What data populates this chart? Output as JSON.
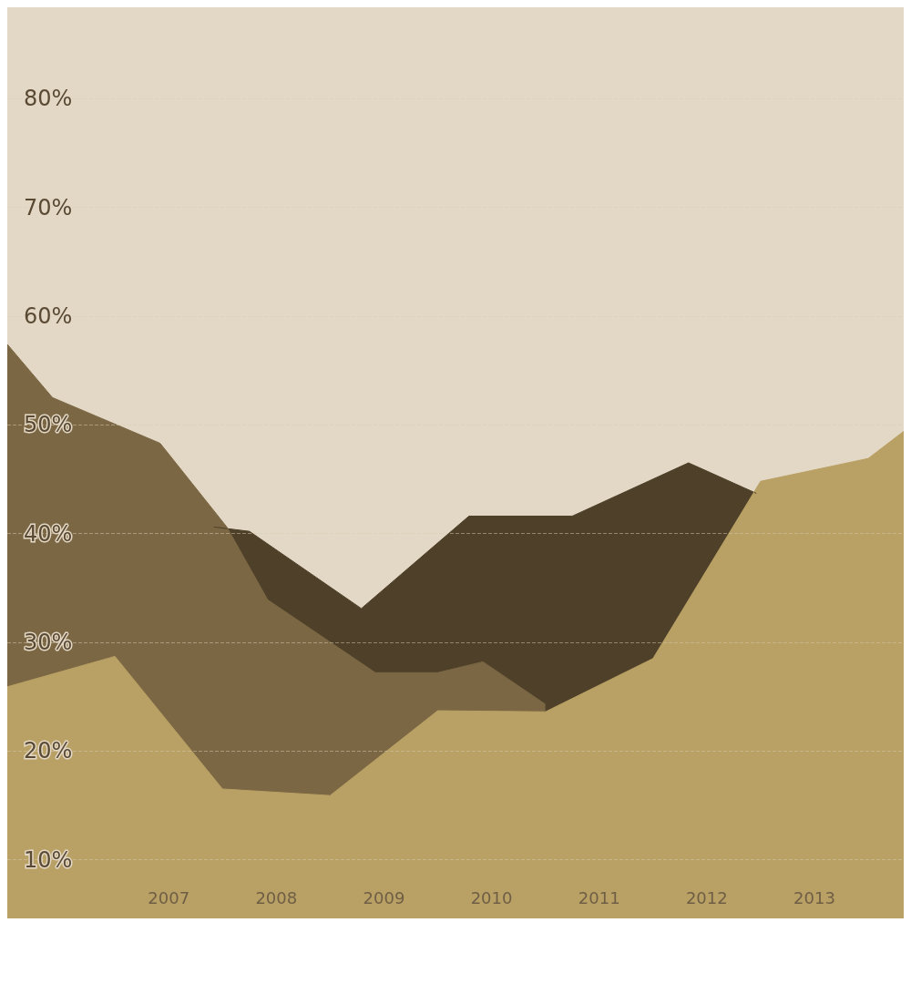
{
  "chart_data": {
    "type": "area",
    "xlim": [
      2005.5,
      2013.83
    ],
    "xticks": [
      2007,
      2008,
      2009,
      2010,
      2011,
      2012,
      2013
    ],
    "ylim": [
      4.6,
      88.4
    ],
    "yticks": [
      {
        "value": 10,
        "label": "10%"
      },
      {
        "value": 20,
        "label": "20%"
      },
      {
        "value": 30,
        "label": "30%"
      },
      {
        "value": 40,
        "label": "40%"
      },
      {
        "value": 50,
        "label": "50%"
      },
      {
        "value": 60,
        "label": "60%"
      },
      {
        "value": 70,
        "label": "70%"
      },
      {
        "value": 80,
        "label": "80%"
      }
    ],
    "grid": "y",
    "series": [
      {
        "color": "#4e4029",
        "x": [
          2007.42,
          2007.75,
          2008.79,
          2009.79,
          2010.75,
          2011.83,
          2012.46
        ],
        "values": [
          40.6,
          40.2,
          33.1,
          41.6,
          41.6,
          46.5,
          43.7
        ]
      },
      {
        "color": "#7b6744",
        "x": [
          2005.5,
          2005.92,
          2006.92,
          2007.54,
          2007.92,
          2008.92,
          2009.5,
          2009.92,
          2010.5
        ],
        "values": [
          57.4,
          52.5,
          48.3,
          40.6,
          33.9,
          27.2,
          27.2,
          28.2,
          24.3
        ]
      },
      {
        "color": "#b9a064",
        "x": [
          2005.5,
          2006.5,
          2007.5,
          2008.5,
          2009.5,
          2010.5,
          2011.5,
          2012.5,
          2013.5,
          2013.83
        ],
        "values": [
          25.9,
          28.7,
          16.5,
          15.9,
          23.7,
          23.6,
          28.5,
          44.8,
          46.9,
          49.4
        ]
      }
    ]
  }
}
